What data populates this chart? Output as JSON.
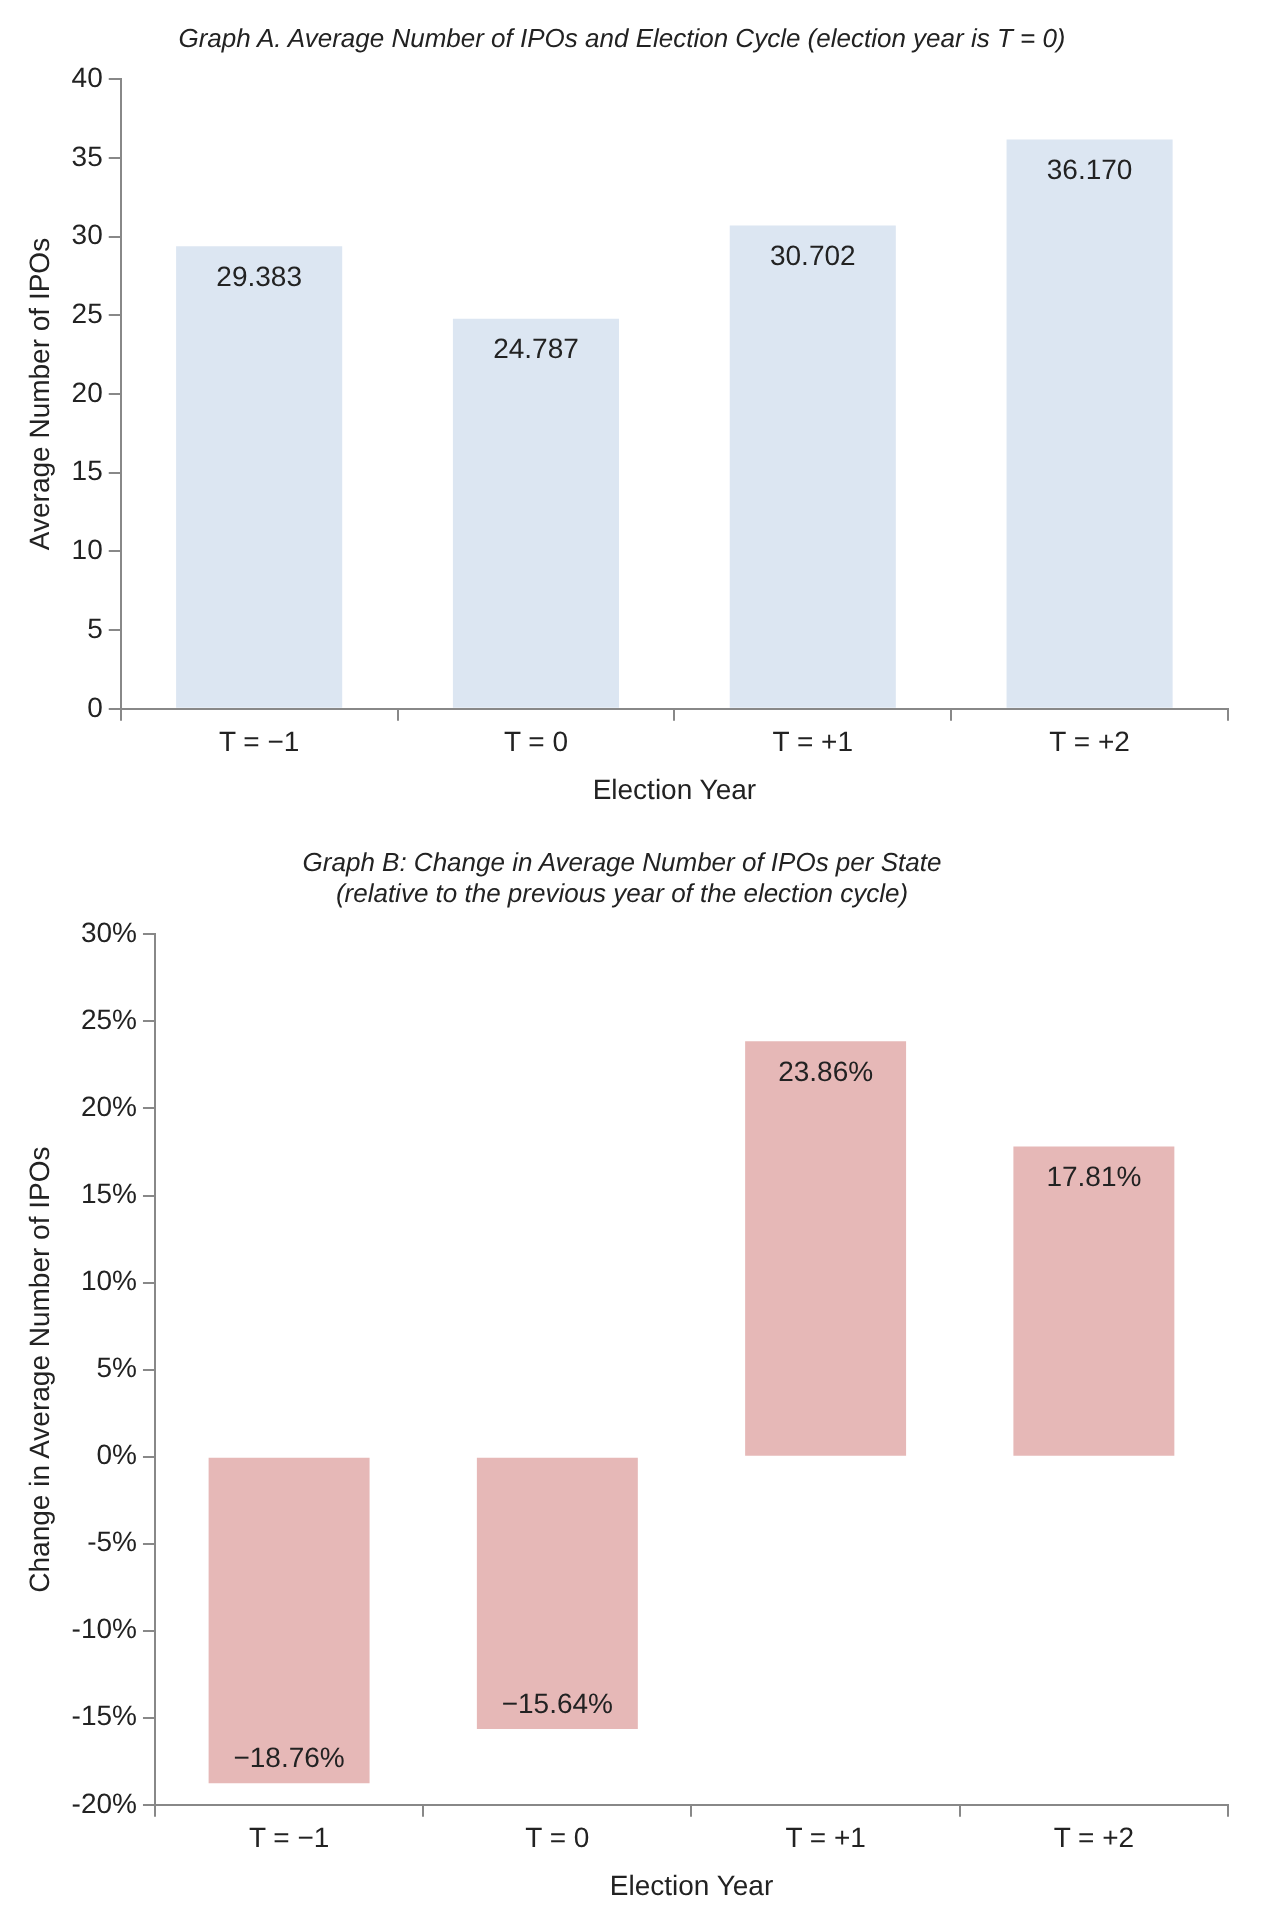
{
  "chart_data": [
    {
      "type": "bar",
      "title": "Graph A. Average Number of IPOs and Election Cycle (election year is T = 0)",
      "xlabel": "Election Year",
      "ylabel": "Average Number of IPOs",
      "categories": [
        "T = −1",
        "T = 0",
        "T = +1",
        "T = +2"
      ],
      "values": [
        29.383,
        24.787,
        30.702,
        36.17
      ],
      "value_labels": [
        "29.383",
        "24.787",
        "30.702",
        "36.170"
      ],
      "color": "#dce6f2",
      "ylim": [
        0,
        40
      ],
      "yticks": [
        0,
        5,
        10,
        15,
        20,
        25,
        30,
        35,
        40
      ]
    },
    {
      "type": "bar",
      "title": "Graph B: Change in Average Number of IPOs per State",
      "subtitle": "(relative to the previous year of the election cycle)",
      "xlabel": "Election Year",
      "ylabel": "Change in Average Number of IPOs",
      "categories": [
        "T = −1",
        "T = 0",
        "T = +1",
        "T = +2"
      ],
      "values": [
        -18.76,
        -15.64,
        23.86,
        17.81
      ],
      "value_labels": [
        "−18.76%",
        "−15.64%",
        "23.86%",
        "17.81%"
      ],
      "color": "#e6b8b7",
      "ylim": [
        -20,
        30
      ],
      "yticks": [
        {
          "value": -20,
          "label": "-20%"
        },
        {
          "value": -15,
          "label": "-15%"
        },
        {
          "value": -10,
          "label": "-10%"
        },
        {
          "value": -5,
          "label": "-5%"
        },
        {
          "value": 0,
          "label": "0%"
        },
        {
          "value": 5,
          "label": "5%"
        },
        {
          "value": 10,
          "label": "10%"
        },
        {
          "value": 15,
          "label": "15%"
        },
        {
          "value": 20,
          "label": "20%"
        },
        {
          "value": 25,
          "label": "25%"
        },
        {
          "value": 30,
          "label": "30%"
        }
      ]
    }
  ]
}
